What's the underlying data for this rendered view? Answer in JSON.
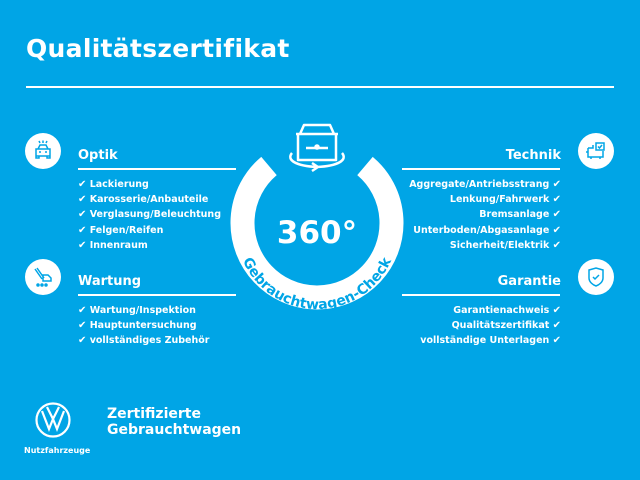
{
  "title": "Qualitätszertifikat",
  "colors": {
    "background": "#00a5e6",
    "foreground": "#ffffff"
  },
  "check_icon": "✔",
  "center": {
    "value": "360°",
    "label": "Gebrauchtwagen-Check",
    "icon": "car-rotate-icon"
  },
  "sections": {
    "optik": {
      "title": "Optik",
      "icon": "car-lights-icon",
      "items": [
        "Lackierung",
        "Karosserie/Anbauteile",
        "Verglasung/Beleuchtung",
        "Felgen/Reifen",
        "Innenraum"
      ]
    },
    "wartung": {
      "title": "Wartung",
      "icon": "service-tools-icon",
      "items": [
        "Wartung/Inspektion",
        "Hauptuntersuchung",
        "vollständiges Zubehör"
      ]
    },
    "technik": {
      "title": "Technik",
      "icon": "engine-check-icon",
      "items": [
        "Aggregate/Antriebsstrang",
        "Lenkung/Fahrwerk",
        "Bremsanlage",
        "Unterboden/Abgasanlage",
        "Sicherheit/Elektrik"
      ]
    },
    "garantie": {
      "title": "Garantie",
      "icon": "shield-check-icon",
      "items": [
        "Garantienachweis",
        "Qualitätszertifikat",
        "vollständige Unterlagen"
      ]
    }
  },
  "footer": {
    "line1": "Zertifizierte",
    "line2": "Gebrauchtwagen",
    "brand": "Nutzfahrzeuge"
  }
}
